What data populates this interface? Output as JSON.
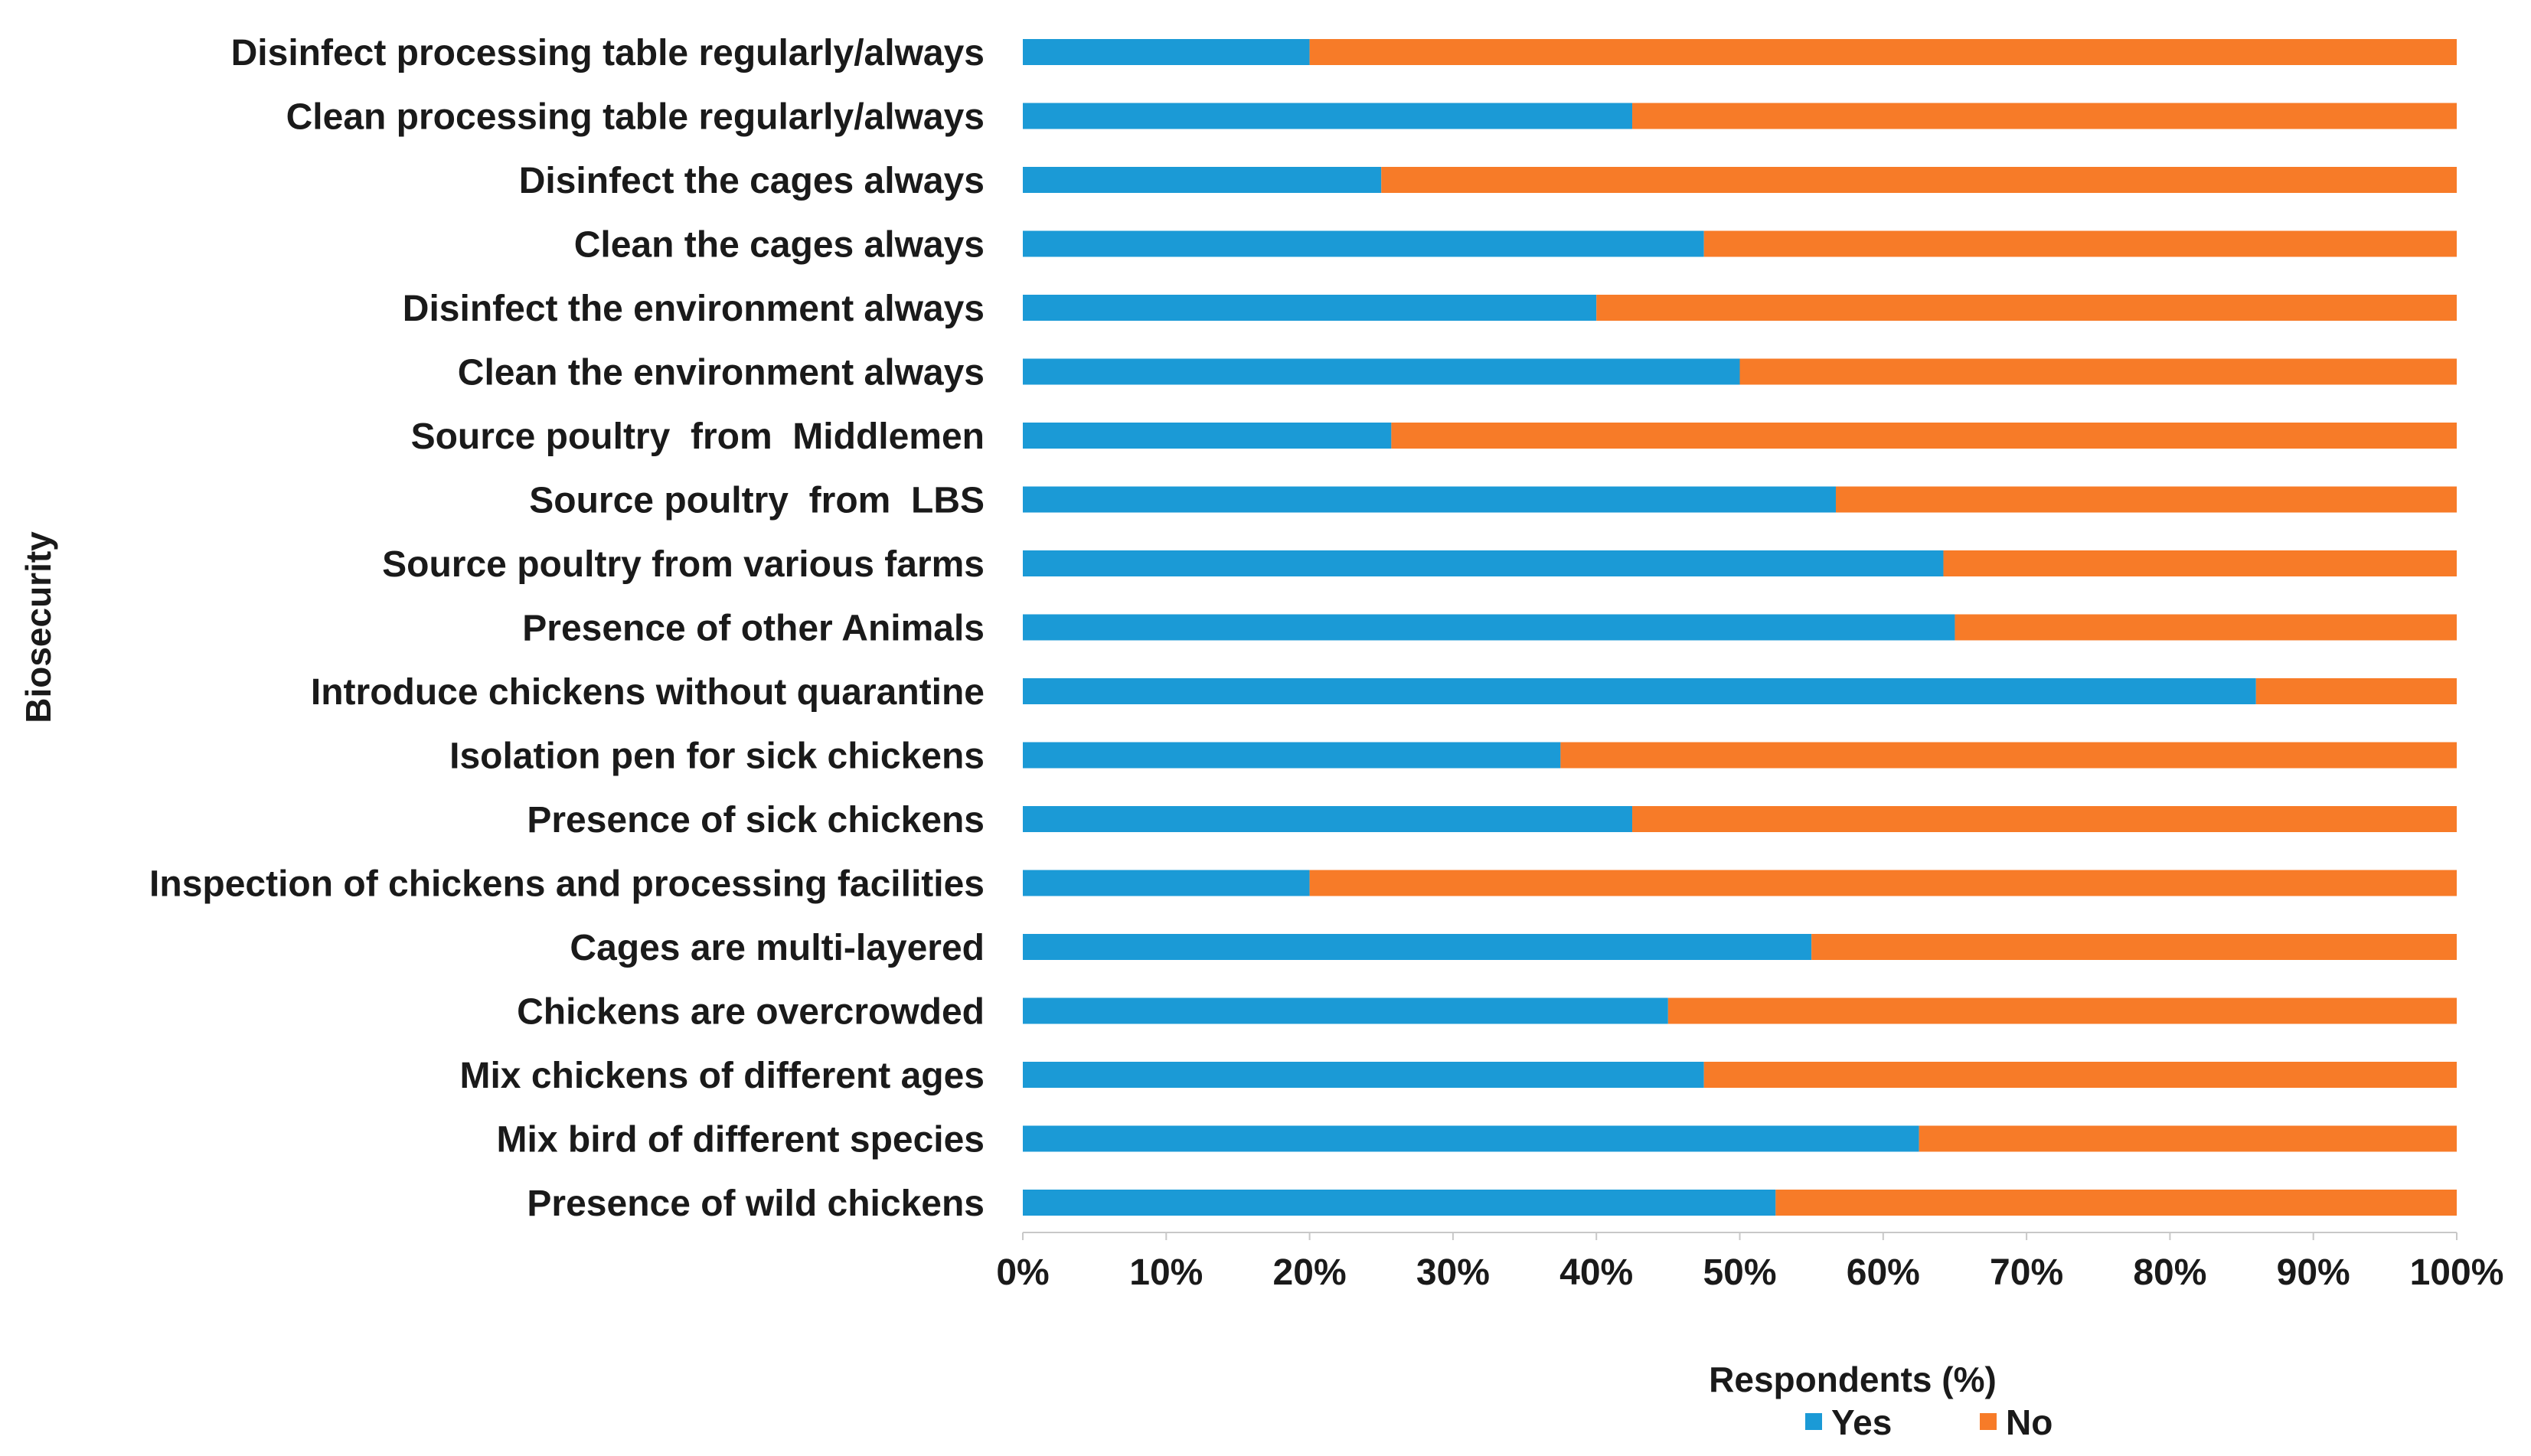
{
  "chart_data": {
    "type": "bar",
    "orientation": "horizontal",
    "stacked": "percent",
    "title": "",
    "xlabel": "Respondents (%)",
    "ylabel": "Biosecurity",
    "xlim": [
      0,
      100
    ],
    "x_ticks": [
      "0%",
      "10%",
      "20%",
      "30%",
      "40%",
      "50%",
      "60%",
      "70%",
      "80%",
      "90%",
      "100%"
    ],
    "categories": [
      "Disinfect processing table regularly/always",
      "Clean processing table regularly/always",
      "Disinfect the cages always",
      "Clean the cages always",
      "Disinfect the environment always",
      "Clean the environment always",
      "Source poultry  from  Middlemen",
      "Source poultry  from  LBS",
      "Source poultry from various farms",
      "Presence of other Animals",
      "Introduce chickens without quarantine",
      "Isolation pen for sick chickens",
      "Presence of sick chickens",
      "Inspection of chickens and processing facilities",
      "Cages are multi-layered",
      "Chickens are overcrowded",
      "Mix chickens of different ages",
      "Mix bird of different species",
      "Presence of wild chickens"
    ],
    "series": [
      {
        "name": "Yes",
        "color": "#1b9ad6",
        "values": [
          20,
          42.5,
          25,
          47.5,
          40,
          50,
          25.7,
          56.7,
          64.2,
          65,
          86,
          37.5,
          42.5,
          20,
          55,
          45,
          47.5,
          62.5,
          52.5
        ]
      },
      {
        "name": "No",
        "color": "#f77b28",
        "values": [
          80,
          57.5,
          75,
          52.5,
          60,
          50,
          74.3,
          43.3,
          35.8,
          35,
          14,
          62.5,
          57.5,
          80,
          45,
          55,
          52.5,
          37.5,
          47.5
        ]
      }
    ],
    "legend": {
      "position": "bottom",
      "items": [
        "Yes",
        "No"
      ]
    },
    "grid": false
  }
}
